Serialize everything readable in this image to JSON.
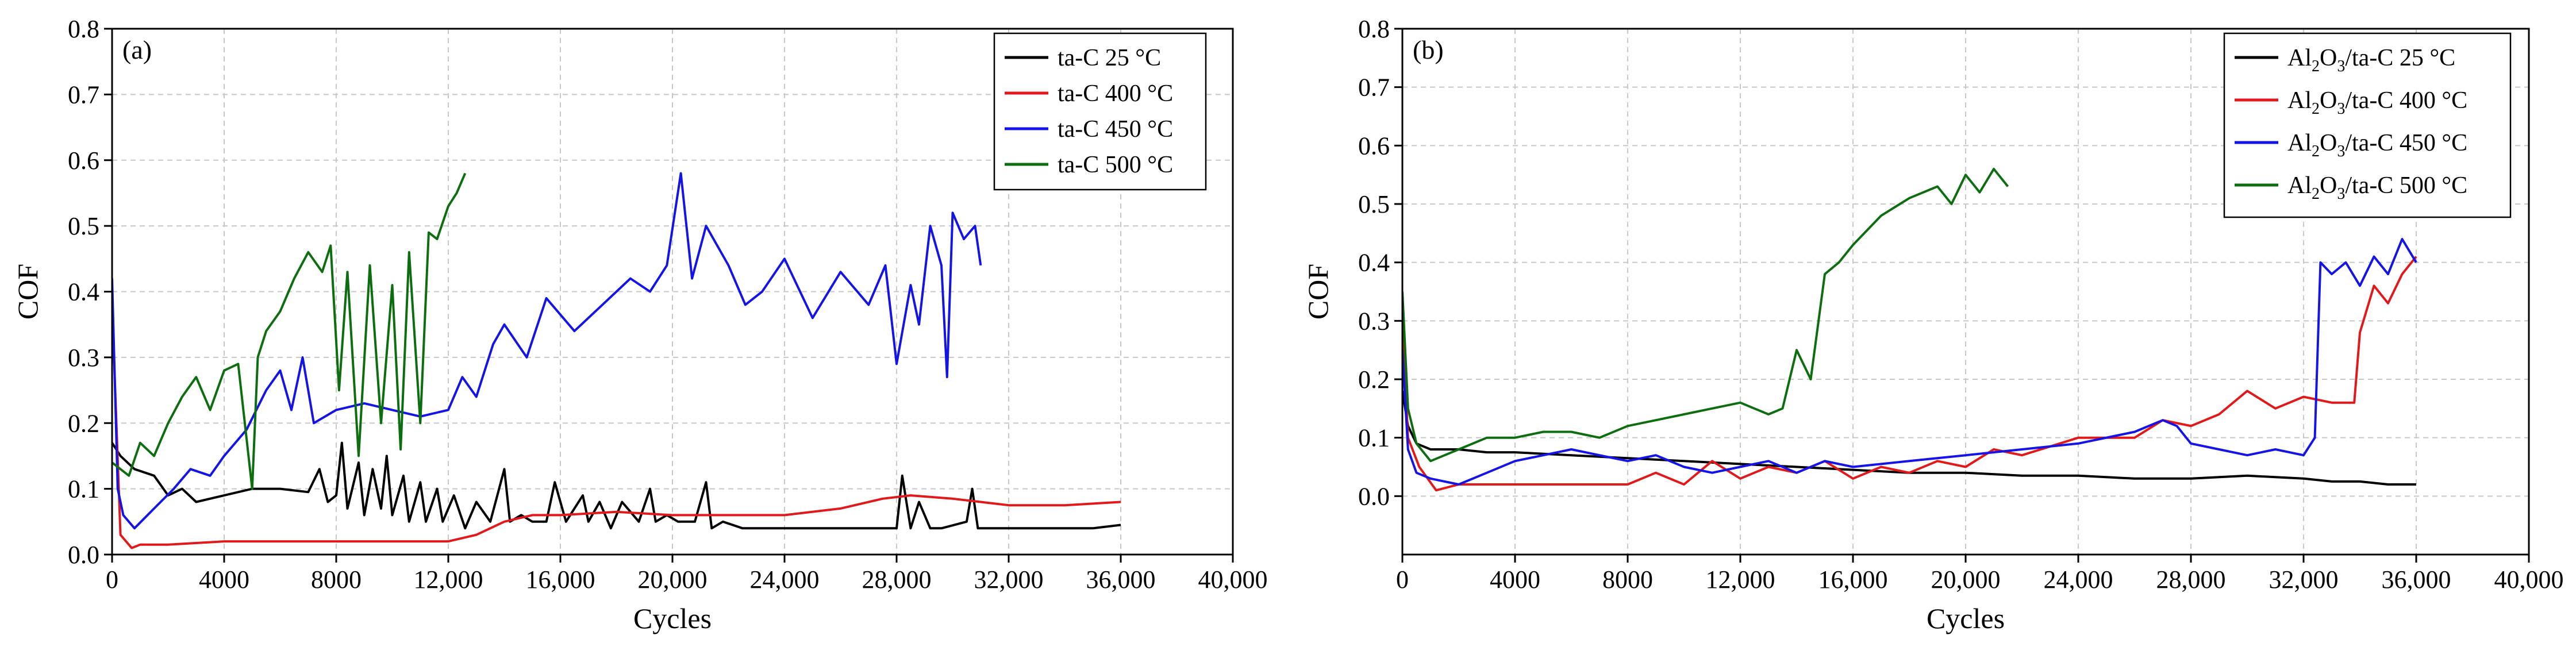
{
  "chart_data": [
    {
      "type": "line",
      "panel_label": "(a)",
      "xlabel": "Cycles",
      "ylabel": "COF",
      "xlim": [
        0,
        40000
      ],
      "ylim": [
        0,
        0.8
      ],
      "x_ticks": [
        0,
        4000,
        8000,
        12000,
        16000,
        20000,
        24000,
        28000,
        32000,
        36000,
        40000
      ],
      "x_tick_labels": [
        "0",
        "4000",
        "8000",
        "12,000",
        "16,000",
        "20,000",
        "24,000",
        "28,000",
        "32,000",
        "36,000",
        "40,000"
      ],
      "y_ticks": [
        0,
        0.1,
        0.2,
        0.3,
        0.4,
        0.5,
        0.6,
        0.7,
        0.8
      ],
      "y_tick_labels": [
        "0.0",
        "0.1",
        "0.2",
        "0.3",
        "0.4",
        "0.5",
        "0.6",
        "0.7",
        "0.8"
      ],
      "grid": true,
      "legend_position": "top-right",
      "series": [
        {
          "name": "ta-C 25 °C",
          "legend_parts": [
            "ta-C 25 °C"
          ],
          "color": "#000000",
          "x": [
            0,
            300,
            800,
            1500,
            2000,
            2500,
            3000,
            4000,
            5000,
            6000,
            7000,
            7400,
            7700,
            8000,
            8200,
            8400,
            8800,
            9000,
            9300,
            9600,
            9800,
            10000,
            10400,
            10600,
            11000,
            11200,
            11600,
            11800,
            12200,
            12600,
            13000,
            13500,
            14000,
            14200,
            14600,
            15000,
            15500,
            15800,
            16200,
            16800,
            17000,
            17400,
            17800,
            18200,
            18800,
            19200,
            19400,
            19800,
            20200,
            20800,
            21200,
            21400,
            21800,
            22500,
            24000,
            26000,
            28000,
            28200,
            28500,
            28800,
            29200,
            29600,
            30500,
            30700,
            30900,
            31500,
            33000,
            35000,
            36000
          ],
          "y": [
            0.17,
            0.15,
            0.13,
            0.12,
            0.09,
            0.1,
            0.08,
            0.09,
            0.1,
            0.1,
            0.095,
            0.13,
            0.08,
            0.09,
            0.17,
            0.07,
            0.14,
            0.06,
            0.13,
            0.07,
            0.15,
            0.06,
            0.12,
            0.05,
            0.11,
            0.05,
            0.1,
            0.05,
            0.09,
            0.04,
            0.08,
            0.05,
            0.13,
            0.05,
            0.06,
            0.05,
            0.05,
            0.11,
            0.05,
            0.09,
            0.05,
            0.08,
            0.04,
            0.08,
            0.05,
            0.1,
            0.05,
            0.06,
            0.05,
            0.05,
            0.11,
            0.04,
            0.05,
            0.04,
            0.04,
            0.04,
            0.04,
            0.12,
            0.04,
            0.08,
            0.04,
            0.04,
            0.05,
            0.1,
            0.04,
            0.04,
            0.04,
            0.04,
            0.045
          ]
        },
        {
          "name": "ta-C 400 °C",
          "legend_parts": [
            "ta-C 400 °C"
          ],
          "color": "#e0191b",
          "x": [
            0,
            300,
            700,
            1000,
            2000,
            4000,
            6000,
            8000,
            10000,
            12000,
            13000,
            14000,
            15000,
            16000,
            18000,
            20000,
            22000,
            24000,
            26000,
            27500,
            28500,
            30000,
            31000,
            32000,
            34000,
            36000
          ],
          "y": [
            0.38,
            0.03,
            0.01,
            0.015,
            0.015,
            0.02,
            0.02,
            0.02,
            0.02,
            0.02,
            0.03,
            0.05,
            0.06,
            0.06,
            0.065,
            0.06,
            0.06,
            0.06,
            0.07,
            0.085,
            0.09,
            0.085,
            0.08,
            0.075,
            0.075,
            0.08
          ]
        },
        {
          "name": "ta-C 450 °C",
          "legend_parts": [
            "ta-C 450 °C"
          ],
          "color": "#1414e6",
          "x": [
            0,
            200,
            400,
            800,
            1500,
            2200,
            2800,
            3500,
            4000,
            4800,
            5500,
            6000,
            6400,
            6800,
            7200,
            8000,
            9000,
            10000,
            11000,
            12000,
            12500,
            13000,
            13600,
            14000,
            14800,
            15500,
            16500,
            17500,
            18500,
            19200,
            19800,
            20300,
            20700,
            21200,
            22000,
            22600,
            23200,
            24000,
            25000,
            26000,
            27000,
            27600,
            28000,
            28500,
            28800,
            29200,
            29600,
            29800,
            30000,
            30400,
            30800,
            31000
          ],
          "y": [
            0.42,
            0.1,
            0.06,
            0.04,
            0.07,
            0.1,
            0.13,
            0.12,
            0.15,
            0.19,
            0.25,
            0.28,
            0.22,
            0.3,
            0.2,
            0.22,
            0.23,
            0.22,
            0.21,
            0.22,
            0.27,
            0.24,
            0.32,
            0.35,
            0.3,
            0.39,
            0.34,
            0.38,
            0.42,
            0.4,
            0.44,
            0.58,
            0.42,
            0.5,
            0.44,
            0.38,
            0.4,
            0.45,
            0.36,
            0.43,
            0.38,
            0.44,
            0.29,
            0.41,
            0.35,
            0.5,
            0.44,
            0.27,
            0.52,
            0.48,
            0.5,
            0.44
          ]
        },
        {
          "name": "ta-C 500 °C",
          "legend_parts": [
            "ta-C 500 °C"
          ],
          "color": "#0d6e10",
          "x": [
            0,
            300,
            600,
            1000,
            1500,
            2000,
            2500,
            3000,
            3500,
            4000,
            4500,
            5000,
            5200,
            5500,
            6000,
            6500,
            7000,
            7500,
            7800,
            8100,
            8400,
            8800,
            9200,
            9600,
            10000,
            10300,
            10600,
            11000,
            11300,
            11600,
            12000,
            12300,
            12600
          ],
          "y": [
            0.14,
            0.13,
            0.12,
            0.17,
            0.15,
            0.2,
            0.24,
            0.27,
            0.22,
            0.28,
            0.29,
            0.1,
            0.3,
            0.34,
            0.37,
            0.42,
            0.46,
            0.43,
            0.47,
            0.25,
            0.43,
            0.15,
            0.44,
            0.2,
            0.41,
            0.16,
            0.46,
            0.2,
            0.49,
            0.48,
            0.53,
            0.55,
            0.58
          ]
        }
      ]
    },
    {
      "type": "line",
      "panel_label": "(b)",
      "xlabel": "Cycles",
      "ylabel": "COF",
      "xlim": [
        0,
        40000
      ],
      "ylim": [
        -0.1,
        0.8
      ],
      "x_ticks": [
        0,
        4000,
        8000,
        12000,
        16000,
        20000,
        24000,
        28000,
        32000,
        36000,
        40000
      ],
      "x_tick_labels": [
        "0",
        "4000",
        "8000",
        "12,000",
        "16,000",
        "20,000",
        "24,000",
        "28,000",
        "32,000",
        "36,000",
        "40,000"
      ],
      "y_ticks": [
        0,
        0.1,
        0.2,
        0.3,
        0.4,
        0.5,
        0.6,
        0.7,
        0.8
      ],
      "y_tick_labels": [
        "0.0",
        "0.1",
        "0.2",
        "0.3",
        "0.4",
        "0.5",
        "0.6",
        "0.7",
        "0.8"
      ],
      "grid": true,
      "legend_position": "top-right",
      "series": [
        {
          "name": "Al2O3/ta-C 25 °C",
          "legend_parts": [
            "Al",
            "2",
            "O",
            "3",
            "/ta-C 25 °C"
          ],
          "color": "#000000",
          "x": [
            0,
            200,
            500,
            1000,
            2000,
            3000,
            4000,
            6000,
            8000,
            10000,
            12000,
            14000,
            16000,
            18000,
            20000,
            22000,
            24000,
            26000,
            28000,
            30000,
            32000,
            33000,
            34000,
            35000,
            36000
          ],
          "y": [
            0.18,
            0.12,
            0.09,
            0.08,
            0.08,
            0.075,
            0.075,
            0.07,
            0.065,
            0.06,
            0.055,
            0.05,
            0.045,
            0.04,
            0.04,
            0.035,
            0.035,
            0.03,
            0.03,
            0.035,
            0.03,
            0.025,
            0.025,
            0.02,
            0.02
          ]
        },
        {
          "name": "Al2O3/ta-C 400 °C",
          "legend_parts": [
            "Al",
            "2",
            "O",
            "3",
            "/ta-C 400 °C"
          ],
          "color": "#e0191b",
          "x": [
            0,
            200,
            600,
            1200,
            2000,
            4000,
            6000,
            7000,
            8000,
            9000,
            10000,
            11000,
            12000,
            13000,
            14000,
            15000,
            16000,
            17000,
            18000,
            19000,
            20000,
            21000,
            22000,
            24000,
            26000,
            27000,
            28000,
            29000,
            30000,
            31000,
            32000,
            33000,
            33800,
            34000,
            34500,
            35000,
            35500,
            36000
          ],
          "y": [
            0.3,
            0.1,
            0.05,
            0.01,
            0.02,
            0.02,
            0.02,
            0.02,
            0.02,
            0.04,
            0.02,
            0.06,
            0.03,
            0.05,
            0.04,
            0.06,
            0.03,
            0.05,
            0.04,
            0.06,
            0.05,
            0.08,
            0.07,
            0.1,
            0.1,
            0.13,
            0.12,
            0.14,
            0.18,
            0.15,
            0.17,
            0.16,
            0.16,
            0.28,
            0.36,
            0.33,
            0.38,
            0.41
          ]
        },
        {
          "name": "Al2O3/ta-C 450 °C",
          "legend_parts": [
            "Al",
            "2",
            "O",
            "3",
            "/ta-C 450 °C"
          ],
          "color": "#1414e6",
          "x": [
            0,
            200,
            500,
            1000,
            2000,
            3000,
            4000,
            5000,
            6000,
            7000,
            8000,
            9000,
            10000,
            11000,
            12000,
            13000,
            14000,
            15000,
            16000,
            18000,
            20000,
            22000,
            24000,
            26000,
            27000,
            27500,
            28000,
            29000,
            30000,
            31000,
            32000,
            32400,
            32600,
            33000,
            33500,
            34000,
            34500,
            35000,
            35500,
            36000
          ],
          "y": [
            0.25,
            0.08,
            0.04,
            0.03,
            0.02,
            0.04,
            0.06,
            0.07,
            0.08,
            0.07,
            0.06,
            0.07,
            0.05,
            0.04,
            0.05,
            0.06,
            0.04,
            0.06,
            0.05,
            0.06,
            0.07,
            0.08,
            0.09,
            0.11,
            0.13,
            0.12,
            0.09,
            0.08,
            0.07,
            0.08,
            0.07,
            0.1,
            0.4,
            0.38,
            0.4,
            0.36,
            0.41,
            0.38,
            0.44,
            0.4
          ]
        },
        {
          "name": "Al2O3/ta-C 500 °C",
          "legend_parts": [
            "Al",
            "2",
            "O",
            "3",
            "/ta-C 500 °C"
          ],
          "color": "#0d6e10",
          "x": [
            0,
            200,
            500,
            1000,
            1500,
            2000,
            3000,
            4000,
            5000,
            6000,
            7000,
            8000,
            9000,
            10000,
            11000,
            12000,
            13000,
            13500,
            14000,
            14500,
            15000,
            15500,
            16000,
            17000,
            18000,
            19000,
            19500,
            20000,
            20500,
            21000,
            21500
          ],
          "y": [
            0.35,
            0.15,
            0.09,
            0.06,
            0.07,
            0.08,
            0.1,
            0.1,
            0.11,
            0.11,
            0.1,
            0.12,
            0.13,
            0.14,
            0.15,
            0.16,
            0.14,
            0.15,
            0.25,
            0.2,
            0.38,
            0.4,
            0.43,
            0.48,
            0.51,
            0.53,
            0.5,
            0.55,
            0.52,
            0.56,
            0.53
          ]
        }
      ]
    }
  ]
}
